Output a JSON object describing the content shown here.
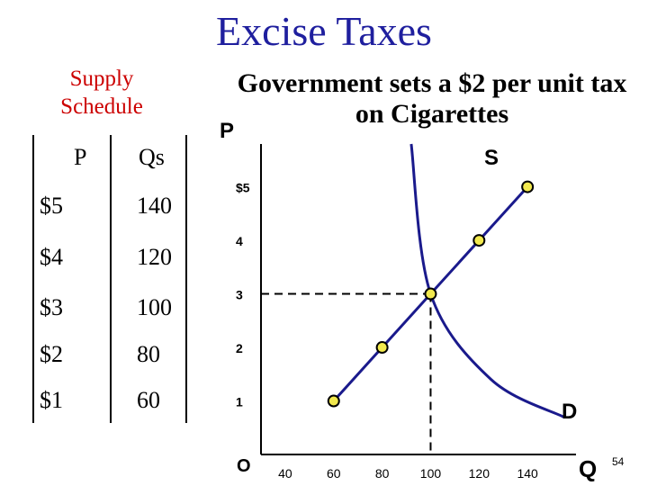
{
  "title": "Excise Taxes",
  "supply_schedule": {
    "heading": "Supply Schedule",
    "columns": [
      "P",
      "Qs"
    ],
    "rows": [
      {
        "p": "$5",
        "qs": "140"
      },
      {
        "p": "$4",
        "qs": "120"
      },
      {
        "p": "$3",
        "qs": "100"
      },
      {
        "p": "$2",
        "qs": "80"
      },
      {
        "p": "$1",
        "qs": "60"
      }
    ]
  },
  "description": "Government sets a $2 per unit tax on Cigarettes",
  "page_number": "54",
  "colors": {
    "title": "#1f1f9e",
    "heading": "#cc0000",
    "curve": "#1a1a8c",
    "point": "#f2e94e"
  },
  "chart_data": {
    "type": "line",
    "ylabel": "P",
    "xlabel": "Q",
    "origin_label": "O",
    "y_ticks": [
      {
        "value": 5,
        "label": "$5"
      },
      {
        "value": 4,
        "label": "4"
      },
      {
        "value": 3,
        "label": "3"
      },
      {
        "value": 2,
        "label": "2"
      },
      {
        "value": 1,
        "label": "1"
      }
    ],
    "x_ticks": [
      {
        "value": 40,
        "label": "40"
      },
      {
        "value": 60,
        "label": "60"
      },
      {
        "value": 80,
        "label": "80"
      },
      {
        "value": 100,
        "label": "100"
      },
      {
        "value": 120,
        "label": "120"
      },
      {
        "value": 140,
        "label": "140"
      }
    ],
    "xlim": [
      30,
      160
    ],
    "ylim": [
      0,
      5.8
    ],
    "series": [
      {
        "name": "S",
        "points": [
          [
            60,
            1
          ],
          [
            80,
            2
          ],
          [
            100,
            3
          ],
          [
            120,
            4
          ],
          [
            140,
            5
          ]
        ]
      },
      {
        "name": "D",
        "points": [
          [
            92,
            5.8
          ],
          [
            100,
            3
          ],
          [
            125,
            1.4
          ],
          [
            155,
            0.7
          ]
        ]
      }
    ],
    "equilibrium": {
      "q": 100,
      "p": 3
    }
  }
}
